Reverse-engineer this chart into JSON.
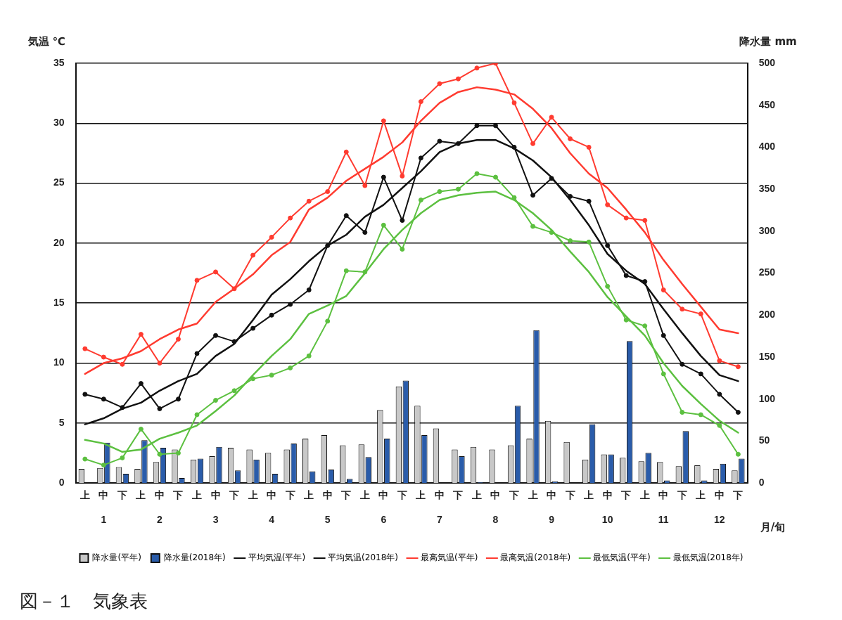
{
  "chart_data": {
    "type": "line",
    "title": "図－１　気象表",
    "ylabel": "気温 ℃",
    "y2label": "降水量 mm",
    "xlabel": "月/旬",
    "categories": [
      "上",
      "中",
      "下",
      "上",
      "中",
      "下",
      "上",
      "中",
      "下",
      "上",
      "中",
      "下",
      "上",
      "中",
      "下",
      "上",
      "中",
      "下",
      "上",
      "中",
      "下",
      "上",
      "中",
      "下",
      "上",
      "中",
      "下",
      "上",
      "中",
      "下",
      "上",
      "中",
      "下",
      "上",
      "中",
      "下"
    ],
    "annotations": [
      "1",
      "2",
      "3",
      "4",
      "5",
      "6",
      "7",
      "8",
      "9",
      "10",
      "11",
      "12"
    ],
    "ylim": [
      0,
      35
    ],
    "yticks": [
      0,
      5,
      10,
      15,
      20,
      25,
      30,
      35
    ],
    "y2lim": [
      0,
      500
    ],
    "y2ticks": [
      0,
      50,
      100,
      150,
      200,
      250,
      300,
      350,
      400,
      450,
      500
    ],
    "grid": "y",
    "legend": "bottom",
    "series": [
      {
        "name": "降水量(平年)",
        "type": "bar",
        "axis": "y2",
        "color": "#c8c8c8",
        "values": [
          17,
          18,
          19,
          17,
          25,
          40,
          28,
          32,
          42,
          40,
          36,
          40,
          53,
          57,
          45,
          46,
          87,
          115,
          92,
          65,
          40,
          43,
          40,
          45,
          53,
          74,
          49,
          28,
          34,
          30,
          26,
          25,
          20,
          21,
          17,
          15
        ]
      },
      {
        "name": "降水量(2018年)",
        "type": "bar",
        "axis": "y2",
        "color": "#2a5caa",
        "values": [
          0,
          48,
          11,
          51,
          42,
          6,
          29,
          43,
          15,
          28,
          11,
          47,
          14,
          16,
          5,
          31,
          53,
          122,
          57,
          0,
          32,
          1,
          0,
          92,
          182,
          2,
          0,
          70,
          34,
          169,
          36,
          3,
          62,
          3,
          23,
          29
        ]
      },
      {
        "name": "平均気温(平年)",
        "color": "#111111",
        "marker": "none",
        "values": [
          4.9,
          5.4,
          6.2,
          6.7,
          7.7,
          8.5,
          9.1,
          10.6,
          11.6,
          13.6,
          15.7,
          17.0,
          18.5,
          19.8,
          20.7,
          22.2,
          23.2,
          24.6,
          26.0,
          27.6,
          28.3,
          28.6,
          28.6,
          27.9,
          26.9,
          25.5,
          23.6,
          21.5,
          19.1,
          17.7,
          16.6,
          14.5,
          12.5,
          10.6,
          9.0,
          8.5
        ]
      },
      {
        "name": "平均気温(2018年)",
        "color": "#111111",
        "marker": "circle",
        "values": [
          7.4,
          7.0,
          6.3,
          8.3,
          6.2,
          7.0,
          10.8,
          12.3,
          11.8,
          12.9,
          14.0,
          14.9,
          16.1,
          19.8,
          22.3,
          20.9,
          25.5,
          21.9,
          27.1,
          28.5,
          28.3,
          29.8,
          29.8,
          28.0,
          24.0,
          25.4,
          23.9,
          23.5,
          19.8,
          17.3,
          16.8,
          12.3,
          9.9,
          9.1,
          7.4,
          5.9
        ]
      },
      {
        "name": "最高気温(平年)",
        "color": "#ff3b30",
        "marker": "none",
        "values": [
          9.1,
          10.0,
          10.4,
          11.0,
          12.0,
          12.8,
          13.3,
          15.1,
          16.2,
          17.4,
          19.0,
          20.1,
          22.8,
          23.8,
          25.2,
          26.2,
          27.2,
          28.4,
          30.2,
          31.7,
          32.6,
          33.0,
          32.8,
          32.4,
          31.2,
          29.6,
          27.5,
          25.8,
          24.6,
          22.8,
          20.9,
          18.6,
          16.6,
          14.7,
          12.8,
          12.5
        ]
      },
      {
        "name": "最高気温(2018年)",
        "color": "#ff3b30",
        "marker": "circle",
        "values": [
          11.2,
          10.5,
          9.9,
          12.4,
          10.0,
          12.0,
          16.9,
          17.6,
          16.2,
          19.0,
          20.5,
          22.1,
          23.5,
          24.3,
          27.6,
          24.8,
          30.2,
          25.6,
          31.8,
          33.3,
          33.7,
          34.6,
          35.0,
          31.7,
          28.3,
          30.5,
          28.7,
          28.0,
          23.2,
          22.1,
          21.9,
          16.1,
          14.5,
          14.1,
          10.2,
          9.7
        ]
      },
      {
        "name": "最低気温(平年)",
        "color": "#5cc040",
        "marker": "none",
        "values": [
          3.6,
          3.3,
          2.6,
          2.8,
          3.7,
          4.2,
          4.8,
          6.0,
          7.3,
          9.0,
          10.6,
          12.0,
          14.1,
          14.8,
          15.6,
          17.5,
          19.5,
          21.1,
          22.5,
          23.6,
          24.0,
          24.2,
          24.3,
          23.6,
          22.5,
          21.1,
          19.3,
          17.6,
          15.5,
          13.9,
          12.3,
          10.0,
          8.1,
          6.6,
          5.2,
          4.2
        ]
      },
      {
        "name": "最低気温(2018年)",
        "color": "#5cc040",
        "marker": "circle",
        "values": [
          2.0,
          1.5,
          2.1,
          4.5,
          2.4,
          2.5,
          5.7,
          6.9,
          7.7,
          8.7,
          9.0,
          9.6,
          10.6,
          13.5,
          17.7,
          17.6,
          21.5,
          19.5,
          23.6,
          24.3,
          24.5,
          25.8,
          25.5,
          23.8,
          21.4,
          20.9,
          20.2,
          20.1,
          16.4,
          13.6,
          13.1,
          9.1,
          5.9,
          5.7,
          4.8,
          2.4
        ]
      }
    ]
  }
}
